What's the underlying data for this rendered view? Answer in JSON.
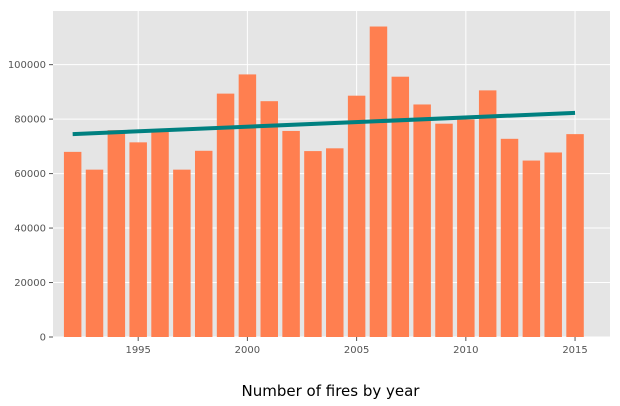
{
  "chart_data": {
    "type": "bar",
    "title": "",
    "xlabel": "Number of fires by year",
    "ylabel": "",
    "x": [
      1992,
      1993,
      1994,
      1995,
      1996,
      1997,
      1998,
      1999,
      2000,
      2001,
      2002,
      2003,
      2004,
      2005,
      2006,
      2007,
      2008,
      2009,
      2010,
      2011,
      2012,
      2013,
      2014,
      2015
    ],
    "values": [
      67975,
      61450,
      75955,
      71472,
      75574,
      61450,
      68370,
      89363,
      96416,
      86587,
      75656,
      68261,
      69279,
      88604,
      114004,
      95573,
      85378,
      78325,
      79889,
      90552,
      72769,
      64780,
      67753,
      74491
    ],
    "trend": {
      "start": [
        1992,
        74500
      ],
      "end": [
        2015,
        82300
      ]
    },
    "xlim": [
      1991.1,
      2016.6
    ],
    "ylim": [
      0,
      119700
    ],
    "xticks": [
      1995,
      2000,
      2005,
      2010,
      2015
    ],
    "yticks": [
      0,
      20000,
      40000,
      60000,
      80000,
      100000
    ],
    "grid": true,
    "legend": "none",
    "colors": {
      "bar": "#FF7F50",
      "trend": "#008080",
      "plot_bg": "#E5E5E5",
      "grid": "#FFFFFF",
      "tick_text": "#555555"
    }
  }
}
